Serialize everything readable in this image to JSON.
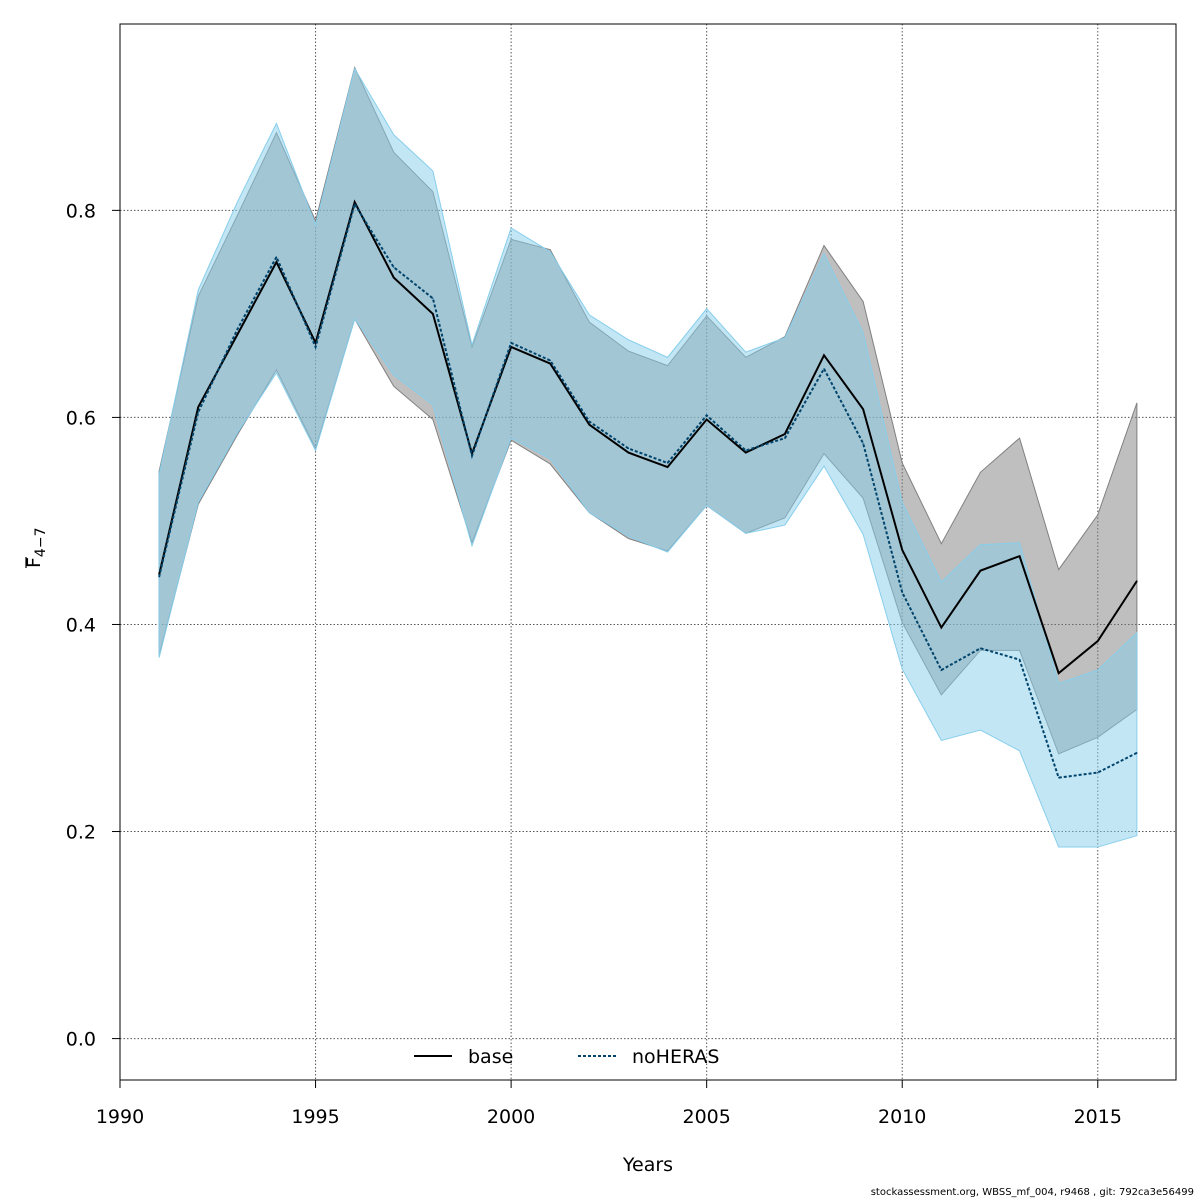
{
  "chart_data": {
    "type": "line",
    "xlabel": "Years",
    "ylabel_main": "F",
    "ylabel_sub": "4−7",
    "xlim": [
      1990,
      2017
    ],
    "ylim": [
      -0.04,
      0.98
    ],
    "x_ticks": [
      1990,
      1995,
      2000,
      2005,
      2010,
      2015
    ],
    "y_ticks": [
      0.0,
      0.2,
      0.4,
      0.6,
      0.8
    ],
    "y_tick_labels": [
      "0.0",
      "0.2",
      "0.4",
      "0.6",
      "0.8"
    ],
    "grid": true,
    "legend_position": "bottom",
    "x": [
      1991,
      1992,
      1993,
      1994,
      1995,
      1996,
      1997,
      1998,
      1999,
      2000,
      2001,
      2002,
      2003,
      2004,
      2005,
      2006,
      2007,
      2008,
      2009,
      2010,
      2011,
      2012,
      2013,
      2014,
      2015,
      2016
    ],
    "series": [
      {
        "name": "base",
        "line": "solid",
        "color": "#000000",
        "band_color": "#808080",
        "values": [
          0.448,
          0.61,
          0.68,
          0.75,
          0.672,
          0.808,
          0.735,
          0.7,
          0.565,
          0.668,
          0.652,
          0.593,
          0.566,
          0.552,
          0.598,
          0.566,
          0.584,
          0.66,
          0.608,
          0.472,
          0.397,
          0.452,
          0.466,
          0.353,
          0.384,
          0.442
        ],
        "lower": [
          0.37,
          0.516,
          0.583,
          0.646,
          0.57,
          0.695,
          0.63,
          0.598,
          0.479,
          0.578,
          0.555,
          0.508,
          0.483,
          0.471,
          0.515,
          0.488,
          0.503,
          0.565,
          0.522,
          0.402,
          0.332,
          0.375,
          0.375,
          0.275,
          0.291,
          0.318
        ],
        "upper": [
          0.548,
          0.717,
          0.795,
          0.875,
          0.79,
          0.938,
          0.856,
          0.818,
          0.668,
          0.772,
          0.762,
          0.692,
          0.664,
          0.65,
          0.698,
          0.658,
          0.678,
          0.766,
          0.712,
          0.556,
          0.478,
          0.547,
          0.58,
          0.453,
          0.506,
          0.614
        ]
      },
      {
        "name": "noHERAS",
        "line": "dotted",
        "color": "#00446b",
        "band_color": "#87ceeb",
        "values": [
          0.446,
          0.605,
          0.685,
          0.755,
          0.668,
          0.806,
          0.745,
          0.715,
          0.563,
          0.672,
          0.655,
          0.596,
          0.57,
          0.556,
          0.602,
          0.568,
          0.58,
          0.647,
          0.575,
          0.431,
          0.356,
          0.377,
          0.366,
          0.252,
          0.257,
          0.276
        ],
        "lower": [
          0.368,
          0.518,
          0.585,
          0.643,
          0.568,
          0.695,
          0.641,
          0.612,
          0.476,
          0.58,
          0.56,
          0.508,
          0.485,
          0.47,
          0.515,
          0.488,
          0.496,
          0.553,
          0.487,
          0.357,
          0.288,
          0.298,
          0.278,
          0.185,
          0.185,
          0.196
        ],
        "upper": [
          0.545,
          0.723,
          0.808,
          0.884,
          0.786,
          0.937,
          0.873,
          0.838,
          0.67,
          0.783,
          0.76,
          0.699,
          0.675,
          0.658,
          0.705,
          0.663,
          0.677,
          0.758,
          0.682,
          0.518,
          0.441,
          0.477,
          0.479,
          0.343,
          0.356,
          0.392
        ]
      }
    ]
  },
  "footer_text": "stockassessment.org, WBSS_mf_004, r9468 , git: 792ca3e56499"
}
